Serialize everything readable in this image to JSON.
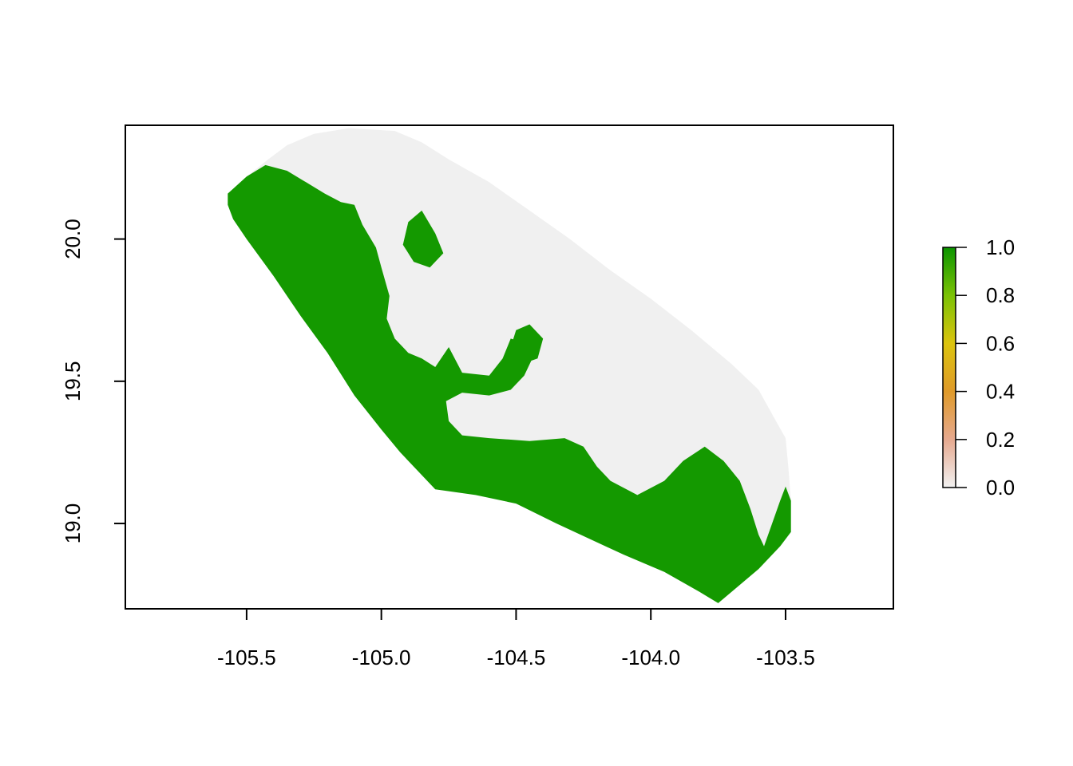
{
  "chart_data": {
    "type": "heatmap",
    "title": "",
    "xlabel": "",
    "ylabel": "",
    "xlim": [
      -105.95,
      -103.1
    ],
    "ylim": [
      18.7,
      20.4
    ],
    "x_ticks": [
      "-105.5",
      "-105.0",
      "-104.5",
      "-104.0",
      "-103.5"
    ],
    "x_tick_values": [
      -105.5,
      -105.0,
      -104.5,
      -104.0,
      -103.5
    ],
    "y_ticks": [
      "19.0",
      "19.5",
      "20.0"
    ],
    "y_tick_values": [
      19.0,
      19.5,
      20.0
    ],
    "grid": false,
    "legend": {
      "position": "right",
      "type": "color-ramp",
      "range": [
        0.0,
        1.0
      ],
      "labels": [
        "0.0",
        "0.2",
        "0.4",
        "0.6",
        "0.8",
        "1.0"
      ],
      "label_values": [
        0.0,
        0.2,
        0.4,
        0.6,
        0.8,
        1.0
      ],
      "colors": [
        "#f2f2f2",
        "#e6a98f",
        "#df9a2a",
        "#dcc40e",
        "#7bc205",
        "#0b9400"
      ]
    },
    "raster_classes": [
      {
        "value": 0,
        "color": "#f0f0f0"
      },
      {
        "value": 1,
        "color": "#149900"
      }
    ],
    "regions": {
      "study_area_value": 0,
      "study_area_outline": [
        [
          -105.57,
          20.16
        ],
        [
          -105.5,
          20.22
        ],
        [
          -105.42,
          20.28
        ],
        [
          -105.35,
          20.33
        ],
        [
          -105.25,
          20.37
        ],
        [
          -105.12,
          20.39
        ],
        [
          -104.95,
          20.38
        ],
        [
          -104.85,
          20.34
        ],
        [
          -104.75,
          20.28
        ],
        [
          -104.6,
          20.2
        ],
        [
          -104.45,
          20.1
        ],
        [
          -104.3,
          20.0
        ],
        [
          -104.15,
          19.89
        ],
        [
          -104.0,
          19.79
        ],
        [
          -103.85,
          19.68
        ],
        [
          -103.7,
          19.56
        ],
        [
          -103.6,
          19.47
        ],
        [
          -103.53,
          19.35
        ],
        [
          -103.5,
          19.3
        ],
        [
          -103.49,
          19.2
        ],
        [
          -103.48,
          19.08
        ],
        [
          -103.48,
          18.97
        ],
        [
          -103.52,
          18.92
        ],
        [
          -103.6,
          18.84
        ],
        [
          -103.7,
          18.76
        ],
        [
          -103.75,
          18.72
        ],
        [
          -103.82,
          18.76
        ],
        [
          -103.95,
          18.83
        ],
        [
          -104.1,
          18.89
        ],
        [
          -104.35,
          19.0
        ],
        [
          -104.5,
          19.07
        ],
        [
          -104.65,
          19.1
        ],
        [
          -104.8,
          19.12
        ],
        [
          -104.93,
          19.25
        ],
        [
          -105.0,
          19.33
        ],
        [
          -105.1,
          19.45
        ],
        [
          -105.2,
          19.6
        ],
        [
          -105.3,
          19.73
        ],
        [
          -105.4,
          19.87
        ],
        [
          -105.5,
          20.0
        ],
        [
          -105.55,
          20.07
        ],
        [
          -105.57,
          20.12
        ]
      ],
      "value_1_areas": [
        [
          [
            -105.57,
            20.16
          ],
          [
            -105.5,
            20.22
          ],
          [
            -105.43,
            20.26
          ],
          [
            -105.35,
            20.24
          ],
          [
            -105.28,
            20.2
          ],
          [
            -105.21,
            20.16
          ],
          [
            -105.15,
            20.13
          ],
          [
            -105.1,
            20.12
          ],
          [
            -105.07,
            20.05
          ],
          [
            -105.02,
            19.97
          ],
          [
            -105.0,
            19.9
          ],
          [
            -104.97,
            19.8
          ],
          [
            -104.98,
            19.72
          ],
          [
            -104.95,
            19.65
          ],
          [
            -104.9,
            19.6
          ],
          [
            -104.85,
            19.58
          ],
          [
            -104.8,
            19.55
          ],
          [
            -104.75,
            19.62
          ],
          [
            -104.7,
            19.53
          ],
          [
            -104.6,
            19.52
          ],
          [
            -104.55,
            19.58
          ],
          [
            -104.52,
            19.65
          ],
          [
            -104.45,
            19.63
          ],
          [
            -104.43,
            19.6
          ],
          [
            -104.47,
            19.52
          ],
          [
            -104.52,
            19.47
          ],
          [
            -104.6,
            19.45
          ],
          [
            -104.7,
            19.46
          ],
          [
            -104.76,
            19.43
          ],
          [
            -104.75,
            19.36
          ],
          [
            -104.7,
            19.31
          ],
          [
            -104.6,
            19.3
          ],
          [
            -104.45,
            19.29
          ],
          [
            -104.32,
            19.3
          ],
          [
            -104.25,
            19.27
          ],
          [
            -104.2,
            19.2
          ],
          [
            -104.15,
            19.15
          ],
          [
            -104.05,
            19.1
          ],
          [
            -103.95,
            19.15
          ],
          [
            -103.88,
            19.22
          ],
          [
            -103.8,
            19.27
          ],
          [
            -103.73,
            19.22
          ],
          [
            -103.67,
            19.15
          ],
          [
            -103.63,
            19.05
          ],
          [
            -103.6,
            18.96
          ],
          [
            -103.58,
            18.92
          ],
          [
            -103.55,
            19.0
          ],
          [
            -103.52,
            19.08
          ],
          [
            -103.5,
            19.13
          ],
          [
            -103.48,
            19.08
          ],
          [
            -103.48,
            18.97
          ],
          [
            -103.52,
            18.92
          ],
          [
            -103.6,
            18.84
          ],
          [
            -103.7,
            18.76
          ],
          [
            -103.75,
            18.72
          ],
          [
            -103.82,
            18.76
          ],
          [
            -103.95,
            18.83
          ],
          [
            -104.1,
            18.89
          ],
          [
            -104.35,
            19.0
          ],
          [
            -104.5,
            19.07
          ],
          [
            -104.65,
            19.1
          ],
          [
            -104.8,
            19.12
          ],
          [
            -104.93,
            19.25
          ],
          [
            -105.0,
            19.33
          ],
          [
            -105.1,
            19.45
          ],
          [
            -105.2,
            19.6
          ],
          [
            -105.3,
            19.73
          ],
          [
            -105.4,
            19.87
          ],
          [
            -105.5,
            20.0
          ],
          [
            -105.55,
            20.07
          ],
          [
            -105.57,
            20.12
          ]
        ],
        [
          [
            -104.85,
            20.1
          ],
          [
            -104.8,
            20.02
          ],
          [
            -104.77,
            19.95
          ],
          [
            -104.82,
            19.9
          ],
          [
            -104.88,
            19.92
          ],
          [
            -104.92,
            19.98
          ],
          [
            -104.9,
            20.06
          ]
        ],
        [
          [
            -104.45,
            19.7
          ],
          [
            -104.4,
            19.65
          ],
          [
            -104.42,
            19.58
          ],
          [
            -104.48,
            19.56
          ],
          [
            -104.52,
            19.62
          ],
          [
            -104.5,
            19.68
          ]
        ]
      ]
    }
  }
}
